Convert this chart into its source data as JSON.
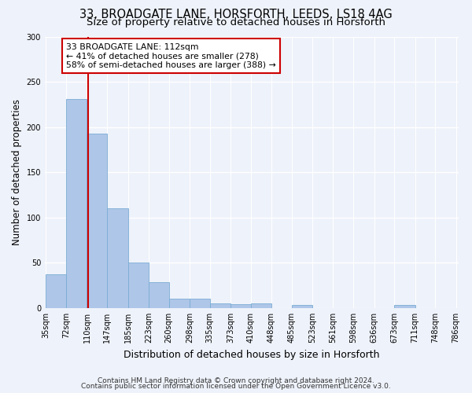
{
  "title_line1": "33, BROADGATE LANE, HORSFORTH, LEEDS, LS18 4AG",
  "title_line2": "Size of property relative to detached houses in Horsforth",
  "xlabel": "Distribution of detached houses by size in Horsforth",
  "ylabel": "Number of detached properties",
  "bar_color": "#aec6e8",
  "bar_edge_color": "#7aadd4",
  "bin_edges": [
    35,
    72,
    110,
    147,
    185,
    223,
    260,
    298,
    335,
    373,
    410,
    448,
    485,
    523,
    561,
    598,
    636,
    673,
    711,
    748,
    786
  ],
  "bar_heights": [
    37,
    231,
    193,
    110,
    50,
    29,
    10,
    10,
    5,
    4,
    5,
    0,
    3,
    0,
    0,
    0,
    0,
    3,
    0,
    0
  ],
  "vline_x": 112,
  "vline_color": "#cc0000",
  "annotation_text": "33 BROADGATE LANE: 112sqm\n← 41% of detached houses are smaller (278)\n58% of semi-detached houses are larger (388) →",
  "annotation_box_color": "white",
  "annotation_box_edge": "#cc0000",
  "ylim": [
    0,
    300
  ],
  "yticks": [
    0,
    50,
    100,
    150,
    200,
    250,
    300
  ],
  "footer_line1": "Contains HM Land Registry data © Crown copyright and database right 2024.",
  "footer_line2": "Contains public sector information licensed under the Open Government Licence v3.0.",
  "background_color": "#eef2fa",
  "grid_color": "#ffffff",
  "title_fontsize": 10.5,
  "subtitle_fontsize": 9.5,
  "ylabel_fontsize": 8.5,
  "xlabel_fontsize": 9,
  "tick_fontsize": 7,
  "annotation_fontsize": 7.8,
  "footer_fontsize": 6.5
}
